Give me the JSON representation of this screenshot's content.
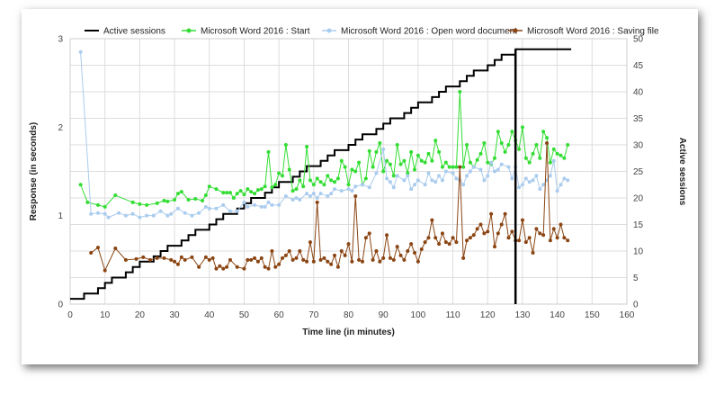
{
  "chart_data": {
    "type": "line",
    "xlabel": "Time line (in minutes)",
    "ylabel": "Response (in seconds)",
    "y2label": "Active sessions",
    "xlim": [
      0,
      160
    ],
    "ylim": [
      0,
      3
    ],
    "y2lim": [
      0,
      50
    ],
    "xticks": [
      "0",
      "10",
      "20",
      "30",
      "40",
      "50",
      "60",
      "70",
      "80",
      "90",
      "100",
      "110",
      "120",
      "130",
      "140",
      "150",
      "160"
    ],
    "yticks": [
      "0",
      "1",
      "2",
      "3"
    ],
    "y2ticks": [
      "0",
      "5",
      "10",
      "15",
      "20",
      "25",
      "30",
      "35",
      "40",
      "45",
      "50"
    ],
    "grid": true,
    "legend_position": "top",
    "vertical_marker_x": 128,
    "series": [
      {
        "name": "Active sessions",
        "color": "#000000",
        "axis": "right",
        "style": "step",
        "x": [
          0,
          2,
          4,
          6,
          8,
          10,
          12,
          14,
          16,
          18,
          20,
          22,
          24,
          26,
          28,
          30,
          32,
          34,
          36,
          38,
          40,
          42,
          44,
          46,
          48,
          50,
          52,
          54,
          56,
          58,
          60,
          62,
          64,
          66,
          68,
          70,
          72,
          74,
          76,
          78,
          80,
          82,
          84,
          86,
          88,
          90,
          92,
          94,
          96,
          98,
          100,
          102,
          104,
          106,
          108,
          110,
          112,
          114,
          116,
          118,
          120,
          122,
          124,
          126,
          128,
          130,
          132,
          134,
          136,
          138,
          140,
          142,
          144
        ],
        "values": [
          1,
          1,
          2,
          2,
          3,
          4,
          5,
          5,
          6,
          7,
          8,
          8,
          9,
          10,
          11,
          11,
          12,
          13,
          14,
          14,
          15,
          16,
          17,
          17,
          18,
          19,
          20,
          20,
          21,
          22,
          23,
          23,
          24,
          25,
          26,
          26,
          27,
          28,
          29,
          29,
          30,
          31,
          32,
          32,
          33,
          34,
          35,
          35,
          36,
          37,
          38,
          38,
          39,
          40,
          41,
          41,
          42,
          43,
          44,
          44,
          45,
          46,
          47,
          47,
          48,
          48,
          48,
          48,
          48,
          48,
          48,
          48,
          48
        ]
      },
      {
        "name": "Microsoft Word 2016 : Start",
        "color": "#33dd33",
        "axis": "left",
        "x": [
          3,
          5,
          8,
          10,
          13,
          18,
          20,
          22,
          25,
          27,
          28,
          30,
          31,
          32,
          34,
          36,
          38,
          39,
          40,
          42,
          44,
          45,
          46,
          47,
          48,
          49,
          50,
          51,
          52,
          53,
          54,
          55,
          56,
          57,
          58,
          59,
          60,
          61,
          62,
          63,
          64,
          65,
          66,
          67,
          68,
          69,
          70,
          71,
          72,
          73,
          74,
          75,
          76,
          77,
          78,
          79,
          80,
          81,
          82,
          83,
          84,
          85,
          86,
          87,
          88,
          89,
          90,
          91,
          92,
          93,
          94,
          95,
          96,
          97,
          98,
          99,
          100,
          101,
          102,
          103,
          104,
          105,
          106,
          107,
          108,
          109,
          110,
          111,
          112,
          113,
          114,
          115,
          116,
          117,
          118,
          119,
          120,
          121,
          122,
          123,
          124,
          125,
          126,
          127,
          128,
          129,
          130,
          131,
          132,
          133,
          134,
          135,
          136,
          137,
          138,
          139,
          140,
          141,
          142,
          143
        ],
        "values": [
          1.35,
          1.15,
          1.12,
          1.1,
          1.23,
          1.15,
          1.13,
          1.12,
          1.14,
          1.17,
          1.16,
          1.18,
          1.25,
          1.27,
          1.18,
          1.19,
          1.17,
          1.23,
          1.33,
          1.3,
          1.26,
          1.26,
          1.26,
          1.2,
          1.25,
          1.28,
          1.24,
          1.3,
          1.27,
          1.25,
          1.29,
          1.3,
          1.33,
          1.72,
          1.32,
          1.35,
          1.48,
          1.45,
          1.8,
          1.52,
          1.28,
          1.3,
          1.4,
          1.33,
          1.78,
          1.4,
          1.35,
          1.42,
          1.38,
          1.35,
          1.45,
          1.4,
          1.38,
          1.42,
          1.62,
          1.55,
          1.35,
          1.52,
          1.5,
          1.6,
          1.35,
          1.42,
          1.73,
          1.55,
          1.72,
          1.82,
          1.5,
          1.62,
          1.58,
          1.45,
          1.8,
          1.58,
          1.62,
          1.48,
          1.72,
          1.52,
          1.68,
          1.62,
          1.6,
          1.7,
          1.62,
          1.85,
          1.72,
          1.55,
          1.6,
          1.55,
          1.55,
          1.55,
          2.4,
          1.55,
          1.8,
          1.6,
          1.55,
          1.63,
          1.7,
          1.82,
          1.6,
          1.58,
          1.65,
          1.95,
          1.82,
          1.72,
          1.8,
          1.95,
          1.85,
          1.75,
          2.0,
          1.65,
          1.6,
          1.7,
          1.8,
          1.65,
          1.95,
          1.88,
          1.6,
          1.75,
          1.7,
          1.68,
          1.65,
          1.8
        ]
      },
      {
        "name": "Microsoft Word 2016 : Open word document",
        "color": "#aaccee",
        "axis": "left",
        "x": [
          3,
          6,
          8,
          10,
          11,
          14,
          16,
          18,
          20,
          22,
          24,
          26,
          28,
          29,
          31,
          33,
          35,
          37,
          39,
          40,
          42,
          44,
          46,
          48,
          50,
          51,
          53,
          55,
          56,
          57,
          58,
          60,
          62,
          64,
          65,
          66,
          68,
          69,
          70,
          71,
          72,
          74,
          75,
          76,
          78,
          80,
          81,
          82,
          84,
          86,
          88,
          90,
          91,
          92,
          93,
          94,
          96,
          97,
          98,
          99,
          100,
          102,
          103,
          104,
          105,
          106,
          107,
          108,
          110,
          111,
          112,
          113,
          114,
          115,
          116,
          118,
          119,
          120,
          121,
          122,
          123,
          124,
          126,
          127,
          128,
          129,
          130,
          131,
          132,
          133,
          134,
          135,
          136,
          137,
          138,
          139,
          140,
          141,
          142,
          143
        ],
        "values": [
          2.85,
          1.02,
          1.03,
          1.02,
          0.98,
          1.03,
          1.0,
          1.02,
          0.98,
          1.0,
          1.0,
          1.05,
          1.0,
          1.02,
          1.08,
          1.03,
          1.0,
          1.03,
          1.1,
          1.08,
          1.08,
          1.12,
          1.05,
          1.05,
          1.15,
          1.1,
          1.12,
          1.1,
          1.1,
          1.15,
          1.12,
          1.12,
          1.22,
          1.18,
          1.2,
          1.18,
          1.25,
          1.22,
          1.25,
          1.2,
          1.25,
          1.22,
          1.25,
          1.3,
          1.28,
          1.3,
          1.28,
          1.33,
          1.35,
          1.32,
          1.48,
          1.75,
          1.42,
          1.38,
          1.32,
          1.45,
          1.4,
          1.45,
          1.3,
          1.35,
          1.4,
          1.35,
          1.48,
          1.4,
          1.38,
          1.45,
          1.4,
          1.5,
          1.48,
          1.42,
          1.4,
          1.35,
          1.45,
          1.5,
          1.55,
          1.52,
          1.4,
          1.45,
          1.6,
          1.5,
          1.52,
          1.58,
          1.55,
          1.42,
          1.55,
          1.32,
          1.35,
          1.42,
          1.38,
          1.4,
          1.45,
          1.3,
          1.35,
          1.4,
          1.45,
          1.62,
          1.28,
          1.35,
          1.42,
          1.4
        ]
      },
      {
        "name": "Microsoft Word 2016 : Saving file",
        "color": "#8b4513",
        "axis": "left",
        "x": [
          6,
          8,
          10,
          13,
          16,
          19,
          21,
          23,
          25,
          27,
          29,
          30,
          31,
          32,
          33,
          35,
          37,
          39,
          40,
          41,
          42,
          43,
          44,
          45,
          46,
          48,
          50,
          51,
          52,
          53,
          54,
          55,
          56,
          57,
          58,
          59,
          60,
          61,
          62,
          63,
          64,
          65,
          66,
          67,
          68,
          69,
          70,
          71,
          72,
          73,
          74,
          75,
          76,
          77,
          78,
          79,
          80,
          81,
          82,
          83,
          84,
          85,
          86,
          87,
          88,
          89,
          90,
          91,
          92,
          93,
          94,
          95,
          96,
          97,
          98,
          99,
          100,
          101,
          102,
          103,
          104,
          105,
          106,
          107,
          108,
          109,
          110,
          111,
          112,
          113,
          114,
          115,
          116,
          117,
          118,
          119,
          120,
          121,
          122,
          123,
          124,
          125,
          126,
          127,
          128,
          129,
          130,
          131,
          132,
          133,
          134,
          135,
          136,
          137,
          138,
          139,
          140,
          141,
          142,
          143
        ],
        "values": [
          0.58,
          0.64,
          0.38,
          0.63,
          0.5,
          0.51,
          0.53,
          0.5,
          0.52,
          0.52,
          0.5,
          0.48,
          0.45,
          0.53,
          0.5,
          0.53,
          0.42,
          0.53,
          0.5,
          0.52,
          0.4,
          0.43,
          0.4,
          0.42,
          0.5,
          0.42,
          0.4,
          0.5,
          0.5,
          0.52,
          0.48,
          0.52,
          0.42,
          0.4,
          0.6,
          0.42,
          0.45,
          0.52,
          0.55,
          0.6,
          0.5,
          0.52,
          0.6,
          0.5,
          0.48,
          0.7,
          0.48,
          1.15,
          0.5,
          0.52,
          0.48,
          0.45,
          0.55,
          0.42,
          0.6,
          0.55,
          0.68,
          0.48,
          1.22,
          0.5,
          0.48,
          0.75,
          0.8,
          0.5,
          0.6,
          0.48,
          0.52,
          0.78,
          0.52,
          0.5,
          0.65,
          0.55,
          0.5,
          0.6,
          0.68,
          0.58,
          0.48,
          0.62,
          0.7,
          0.75,
          0.95,
          0.75,
          0.68,
          0.8,
          0.7,
          0.68,
          0.75,
          0.7,
          1.55,
          0.52,
          0.72,
          0.75,
          0.78,
          0.85,
          0.9,
          0.8,
          0.82,
          1.02,
          0.65,
          0.8,
          0.9,
          1.02,
          0.75,
          0.82,
          0.72,
          0.72,
          0.95,
          0.7,
          0.75,
          0.58,
          0.85,
          0.8,
          0.78,
          1.82,
          0.72,
          0.85,
          0.75,
          0.9,
          0.75,
          0.72
        ]
      }
    ]
  }
}
